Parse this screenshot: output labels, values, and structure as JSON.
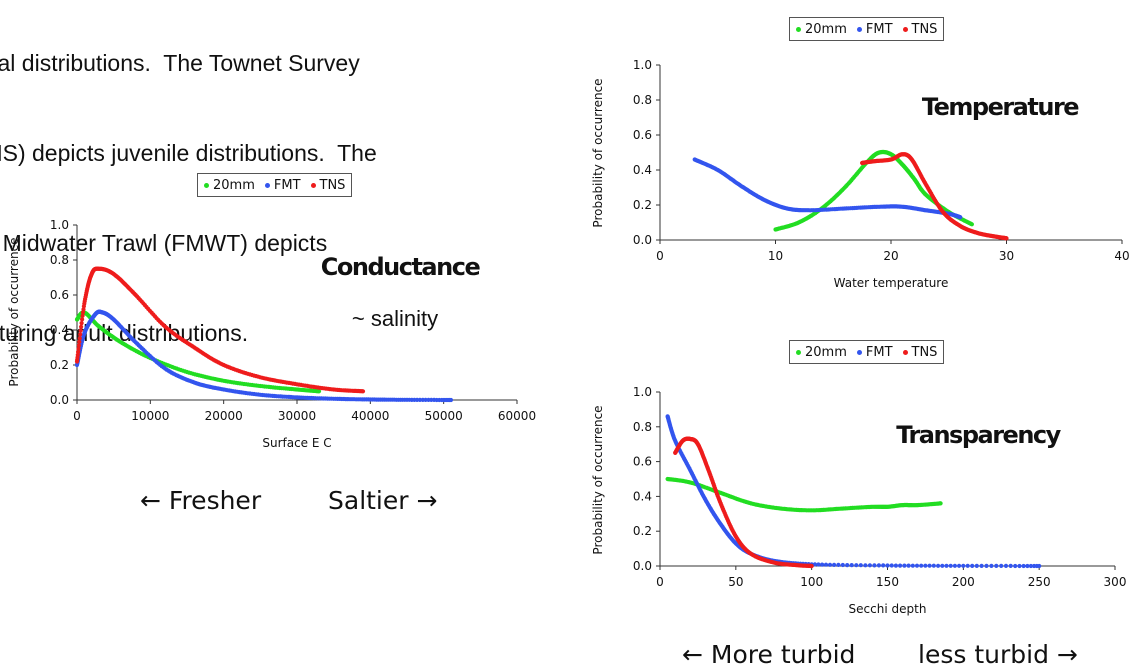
{
  "intro_lines": [
    "val distributions.  The Townet Survey",
    "NS) depicts juvenile distributions.  The",
    "ll Midwater Trawl (FMWT) depicts",
    "aturing adult distributions."
  ],
  "colors": {
    "20mm": "#22dd22",
    "FMT": "#3355ee",
    "TNS": "#ee1c1c"
  },
  "chart_data": [
    {
      "type": "scatter",
      "id": "conductance",
      "xlabel": "Surface E C",
      "ylabel": "Probability of occurrence",
      "xlim": [
        0,
        60000
      ],
      "ylim": [
        0,
        1.0
      ],
      "xticks": [
        "0",
        "10000",
        "20000",
        "30000",
        "40000",
        "50000",
        "60000"
      ],
      "yticks": [
        "0.0",
        "0.2",
        "0.4",
        "0.6",
        "0.8",
        "1.0"
      ],
      "annotation": "Conductance",
      "subannotation": "~ salinity",
      "footer_left": "← Fresher",
      "footer_right": "Saltier →",
      "legend": [
        "20mm",
        "FMT",
        "TNS"
      ],
      "series": [
        {
          "name": "20mm",
          "points": [
            [
              0,
              0.46
            ],
            [
              1000,
              0.5
            ],
            [
              3000,
              0.42
            ],
            [
              6000,
              0.33
            ],
            [
              10000,
              0.24
            ],
            [
              15000,
              0.16
            ],
            [
              20000,
              0.11
            ],
            [
              25000,
              0.08
            ],
            [
              30000,
              0.06
            ],
            [
              33000,
              0.05
            ]
          ]
        },
        {
          "name": "FMT",
          "points": [
            [
              0,
              0.2
            ],
            [
              1000,
              0.38
            ],
            [
              2500,
              0.49
            ],
            [
              3500,
              0.5
            ],
            [
              5000,
              0.46
            ],
            [
              8000,
              0.33
            ],
            [
              12000,
              0.18
            ],
            [
              16000,
              0.1
            ],
            [
              20000,
              0.06
            ],
            [
              25000,
              0.03
            ],
            [
              30000,
              0.015
            ],
            [
              35000,
              0.007
            ],
            [
              40000,
              0.003
            ],
            [
              45000,
              0.001
            ],
            [
              51000,
              0.0
            ]
          ]
        },
        {
          "name": "TNS",
          "points": [
            [
              0,
              0.22
            ],
            [
              1000,
              0.55
            ],
            [
              2000,
              0.72
            ],
            [
              3000,
              0.75
            ],
            [
              5000,
              0.72
            ],
            [
              8000,
              0.6
            ],
            [
              12000,
              0.42
            ],
            [
              16000,
              0.3
            ],
            [
              20000,
              0.2
            ],
            [
              25000,
              0.13
            ],
            [
              30000,
              0.09
            ],
            [
              35000,
              0.06
            ],
            [
              39000,
              0.05
            ]
          ]
        }
      ]
    },
    {
      "type": "scatter",
      "id": "temperature",
      "xlabel": "Water temperature",
      "ylabel": "Probability of occurrence",
      "xlim": [
        0,
        40
      ],
      "ylim": [
        0,
        1.0
      ],
      "xticks": [
        "0",
        "10",
        "20",
        "30",
        "40"
      ],
      "yticks": [
        "0.0",
        "0.2",
        "0.4",
        "0.6",
        "0.8",
        "1.0"
      ],
      "annotation": "Temperature",
      "legend": [
        "20mm",
        "FMT",
        "TNS"
      ],
      "series": [
        {
          "name": "20mm",
          "points": [
            [
              10,
              0.06
            ],
            [
              12,
              0.1
            ],
            [
              14,
              0.18
            ],
            [
              16,
              0.3
            ],
            [
              18,
              0.45
            ],
            [
              19,
              0.5
            ],
            [
              20,
              0.49
            ],
            [
              21,
              0.43
            ],
            [
              22,
              0.35
            ],
            [
              23,
              0.26
            ],
            [
              25,
              0.16
            ],
            [
              27,
              0.09
            ]
          ]
        },
        {
          "name": "FMT",
          "points": [
            [
              3,
              0.46
            ],
            [
              5,
              0.4
            ],
            [
              7,
              0.31
            ],
            [
              9,
              0.23
            ],
            [
              11,
              0.18
            ],
            [
              13,
              0.17
            ],
            [
              16,
              0.18
            ],
            [
              19,
              0.19
            ],
            [
              21,
              0.19
            ],
            [
              23,
              0.17
            ],
            [
              25,
              0.15
            ],
            [
              26,
              0.13
            ]
          ]
        },
        {
          "name": "TNS",
          "points": [
            [
              17.5,
              0.44
            ],
            [
              18.5,
              0.45
            ],
            [
              20,
              0.46
            ],
            [
              21,
              0.49
            ],
            [
              21.8,
              0.46
            ],
            [
              23,
              0.32
            ],
            [
              24.5,
              0.16
            ],
            [
              26,
              0.08
            ],
            [
              27.5,
              0.04
            ],
            [
              29,
              0.02
            ],
            [
              30,
              0.01
            ]
          ]
        }
      ]
    },
    {
      "type": "scatter",
      "id": "transparency",
      "xlabel": "Secchi depth",
      "ylabel": "Probability of occurrence",
      "xlim": [
        0,
        300
      ],
      "ylim": [
        0,
        1.0
      ],
      "xticks": [
        "0",
        "50",
        "100",
        "150",
        "200",
        "250",
        "300"
      ],
      "yticks": [
        "0.0",
        "0.2",
        "0.4",
        "0.6",
        "0.8",
        "1.0"
      ],
      "annotation": "Transparency",
      "footer_left": "← More turbid",
      "footer_right": "less turbid →",
      "legend": [
        "20mm",
        "FMT",
        "TNS"
      ],
      "series": [
        {
          "name": "20mm",
          "points": [
            [
              5,
              0.5
            ],
            [
              20,
              0.48
            ],
            [
              40,
              0.42
            ],
            [
              60,
              0.36
            ],
            [
              80,
              0.33
            ],
            [
              100,
              0.32
            ],
            [
              120,
              0.33
            ],
            [
              140,
              0.34
            ],
            [
              150,
              0.34
            ],
            [
              160,
              0.35
            ],
            [
              170,
              0.35
            ],
            [
              185,
              0.36
            ]
          ]
        },
        {
          "name": "FMT",
          "points": [
            [
              5,
              0.86
            ],
            [
              10,
              0.72
            ],
            [
              20,
              0.55
            ],
            [
              30,
              0.38
            ],
            [
              40,
              0.24
            ],
            [
              50,
              0.13
            ],
            [
              60,
              0.07
            ],
            [
              75,
              0.03
            ],
            [
              100,
              0.01
            ],
            [
              150,
              0.003
            ],
            [
              200,
              0.001
            ],
            [
              250,
              0.0
            ]
          ]
        },
        {
          "name": "TNS",
          "points": [
            [
              10,
              0.65
            ],
            [
              15,
              0.72
            ],
            [
              20,
              0.73
            ],
            [
              25,
              0.7
            ],
            [
              32,
              0.55
            ],
            [
              40,
              0.36
            ],
            [
              50,
              0.17
            ],
            [
              60,
              0.07
            ],
            [
              75,
              0.02
            ],
            [
              90,
              0.005
            ],
            [
              100,
              0.0
            ]
          ]
        }
      ]
    }
  ]
}
